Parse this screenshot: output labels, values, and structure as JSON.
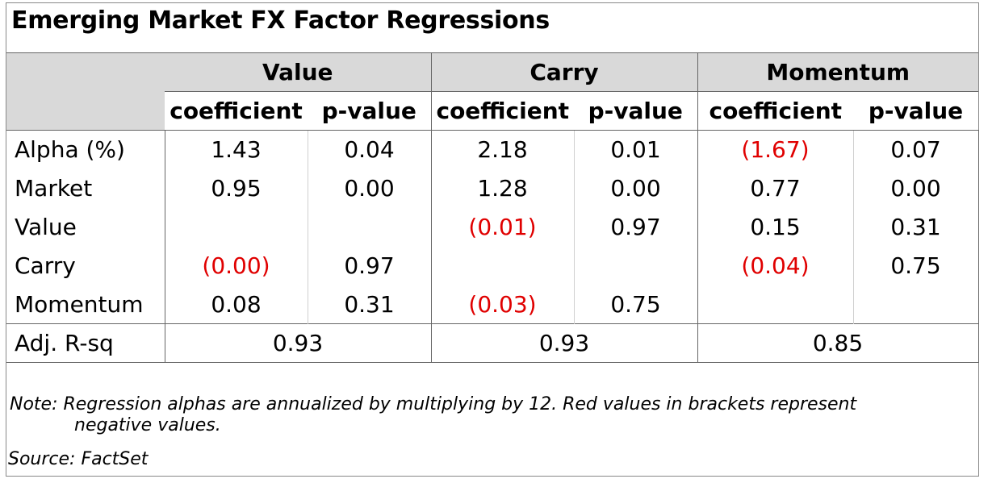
{
  "title": "Emerging Market FX Factor Regressions",
  "groups": [
    "Value",
    "Carry",
    "Momentum"
  ],
  "subheaders": [
    "coefficient",
    "p-value"
  ],
  "rows": [
    {
      "label": "Alpha (%)",
      "cells": [
        {
          "v": "1.43",
          "neg": false
        },
        {
          "v": "0.04",
          "neg": false
        },
        {
          "v": "2.18",
          "neg": false
        },
        {
          "v": "0.01",
          "neg": false
        },
        {
          "v": "(1.67)",
          "neg": true
        },
        {
          "v": "0.07",
          "neg": false
        }
      ]
    },
    {
      "label": "Market",
      "cells": [
        {
          "v": "0.95",
          "neg": false
        },
        {
          "v": "0.00",
          "neg": false
        },
        {
          "v": "1.28",
          "neg": false
        },
        {
          "v": "0.00",
          "neg": false
        },
        {
          "v": "0.77",
          "neg": false
        },
        {
          "v": "0.00",
          "neg": false
        }
      ]
    },
    {
      "label": "Value",
      "cells": [
        {
          "v": "",
          "neg": false
        },
        {
          "v": "",
          "neg": false
        },
        {
          "v": "(0.01)",
          "neg": true
        },
        {
          "v": "0.97",
          "neg": false
        },
        {
          "v": "0.15",
          "neg": false
        },
        {
          "v": "0.31",
          "neg": false
        }
      ]
    },
    {
      "label": "Carry",
      "cells": [
        {
          "v": "(0.00)",
          "neg": true
        },
        {
          "v": "0.97",
          "neg": false
        },
        {
          "v": "",
          "neg": false
        },
        {
          "v": "",
          "neg": false
        },
        {
          "v": "(0.04)",
          "neg": true
        },
        {
          "v": "0.75",
          "neg": false
        }
      ]
    },
    {
      "label": "Momentum",
      "cells": [
        {
          "v": "0.08",
          "neg": false
        },
        {
          "v": "0.31",
          "neg": false
        },
        {
          "v": "(0.03)",
          "neg": true
        },
        {
          "v": "0.75",
          "neg": false
        },
        {
          "v": "",
          "neg": false
        },
        {
          "v": "",
          "neg": false
        }
      ]
    }
  ],
  "adj_r_sq": {
    "label": "Adj. R-sq",
    "values": [
      "0.93",
      "0.93",
      "0.85"
    ]
  },
  "note_line1": "Note: Regression alphas are annualized by multiplying by 12. Red values in brackets represent",
  "note_line2": "negative values.",
  "source": "Source: FactSet",
  "colors": {
    "negative": "#e00000",
    "header_bg": "#d9d9d9"
  }
}
